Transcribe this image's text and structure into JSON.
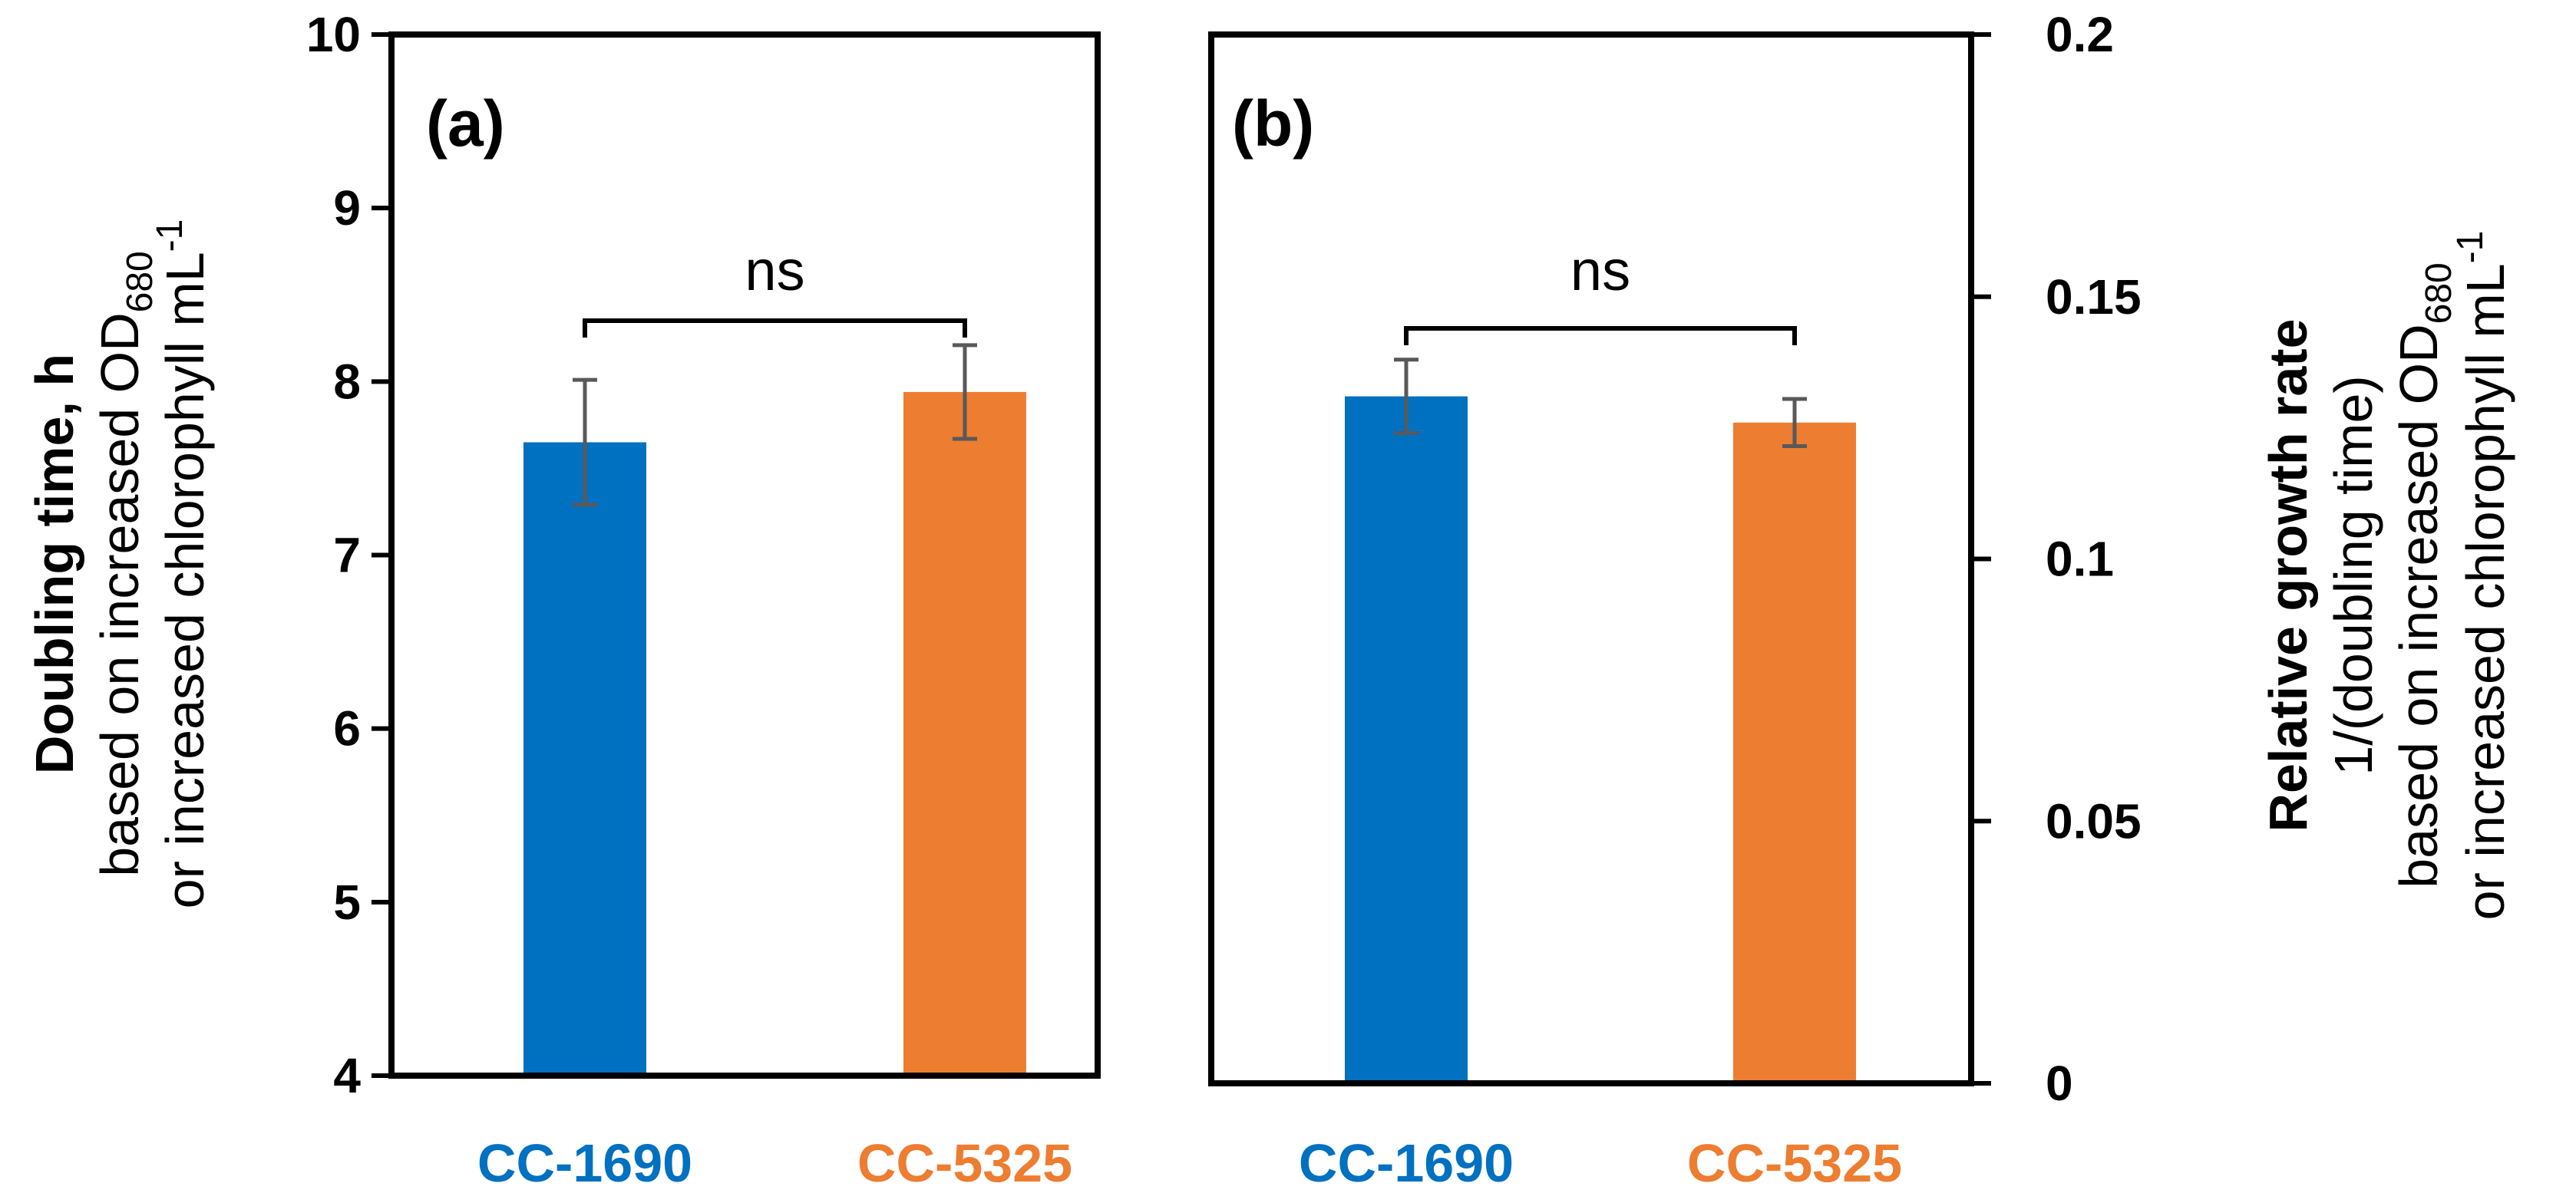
{
  "chart_data": [
    {
      "type": "bar",
      "panel_label": "(a)",
      "categories": [
        "CC-1690",
        "CC-5325"
      ],
      "values": [
        7.65,
        7.94
      ],
      "errors": [
        0.36,
        0.27
      ],
      "colors": [
        "#0070C0",
        "#ED7D31"
      ],
      "ylim": [
        4,
        10
      ],
      "yticks": [
        "4",
        "5",
        "6",
        "7",
        "8",
        "9",
        "10"
      ],
      "ytick_values": [
        4,
        5,
        6,
        7,
        8,
        9,
        10
      ],
      "ylabel": {
        "line1": "Doubling time, h",
        "line2": "based on increased OD",
        "line2_sub": "680",
        "line3": "or increased chlorophyll mL",
        "line3_sup": "-1"
      },
      "axis_side": "left",
      "significance": "ns"
    },
    {
      "type": "bar",
      "panel_label": "(b)",
      "categories": [
        "CC-1690",
        "CC-5325"
      ],
      "values": [
        0.131,
        0.126
      ],
      "errors": [
        0.007,
        0.0045
      ],
      "colors": [
        "#0070C0",
        "#ED7D31"
      ],
      "ylim": [
        0,
        0.2
      ],
      "yticks": [
        "0",
        "0.05",
        "0.1",
        "0.15",
        "0.2"
      ],
      "ytick_values": [
        0,
        0.05,
        0.1,
        0.15,
        0.2
      ],
      "ylabel": {
        "line1": "Relative growth rate",
        "line2": "1/(doubling time)",
        "line3": "based on increased OD",
        "line3_sub": "680",
        "line4": "or increased chlorophyll mL",
        "line4_sup": "-1"
      },
      "axis_side": "right",
      "significance": "ns"
    }
  ]
}
